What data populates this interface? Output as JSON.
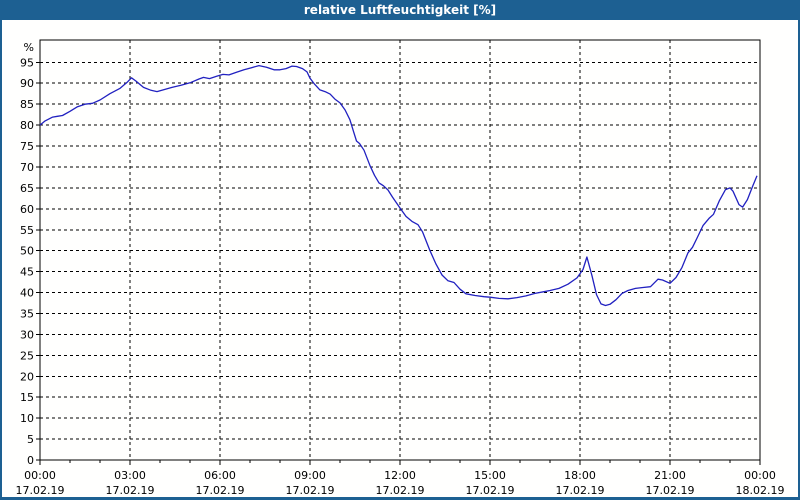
{
  "window": {
    "title": "relative Luftfeuchtigkeit [%]"
  },
  "colors": {
    "titlebar_bg": "#1d6092",
    "titlebar_text": "#ffffff",
    "window_border": "#1d6092",
    "plot_bg": "#fffffe",
    "grid": "#000000",
    "axis": "#000000",
    "label": "#000000",
    "line": "#2121c0"
  },
  "chart_data": {
    "type": "line",
    "title": "relative Luftfeuchtigkeit [%]",
    "ylabel": "%",
    "xlabel": "",
    "ylim": [
      0,
      100.4
    ],
    "xlim_hours": [
      0,
      24
    ],
    "grid": "dashed",
    "legend": "none",
    "y_tick_labels": [
      "0",
      "5",
      "10",
      "15",
      "20",
      "25",
      "30",
      "35",
      "40",
      "45",
      "50",
      "55",
      "60",
      "65",
      "70",
      "75",
      "80",
      "85",
      "90",
      "95"
    ],
    "y_tick_values": [
      0,
      5,
      10,
      15,
      20,
      25,
      30,
      35,
      40,
      45,
      50,
      55,
      60,
      65,
      70,
      75,
      80,
      85,
      90,
      95
    ],
    "x_ticks": [
      {
        "hour": 0,
        "time": "00:00",
        "date": "17.02.19"
      },
      {
        "hour": 3,
        "time": "03:00",
        "date": "17.02.19"
      },
      {
        "hour": 6,
        "time": "06:00",
        "date": "17.02.19"
      },
      {
        "hour": 9,
        "time": "09:00",
        "date": "17.02.19"
      },
      {
        "hour": 12,
        "time": "12:00",
        "date": "17.02.19"
      },
      {
        "hour": 15,
        "time": "15:00",
        "date": "17.02.19"
      },
      {
        "hour": 18,
        "time": "18:00",
        "date": "17.02.19"
      },
      {
        "hour": 21,
        "time": "21:00",
        "date": "17.02.19"
      },
      {
        "hour": 24,
        "time": "00:00",
        "date": "18.02.19"
      }
    ],
    "x_minor_tick_hours": [
      1,
      2,
      4,
      5,
      7,
      8,
      10,
      11,
      13,
      14,
      16,
      17,
      19,
      20,
      22,
      23
    ],
    "series": [
      {
        "name": "relative Luftfeuchtigkeit",
        "unit": "%",
        "points": [
          [
            0.0,
            80.0
          ],
          [
            0.17,
            81.0
          ],
          [
            0.42,
            81.9
          ],
          [
            0.58,
            82.1
          ],
          [
            0.75,
            82.3
          ],
          [
            1.0,
            83.3
          ],
          [
            1.25,
            84.4
          ],
          [
            1.5,
            85.0
          ],
          [
            1.75,
            85.2
          ],
          [
            2.0,
            86.0
          ],
          [
            2.33,
            87.5
          ],
          [
            2.67,
            88.8
          ],
          [
            2.9,
            90.2
          ],
          [
            3.05,
            91.3
          ],
          [
            3.2,
            90.5
          ],
          [
            3.45,
            89.0
          ],
          [
            3.7,
            88.3
          ],
          [
            3.9,
            88.0
          ],
          [
            4.15,
            88.5
          ],
          [
            4.4,
            89.0
          ],
          [
            4.7,
            89.5
          ],
          [
            5.0,
            90.1
          ],
          [
            5.3,
            91.0
          ],
          [
            5.45,
            91.4
          ],
          [
            5.65,
            91.1
          ],
          [
            5.9,
            91.7
          ],
          [
            6.1,
            92.1
          ],
          [
            6.3,
            92.0
          ],
          [
            6.55,
            92.6
          ],
          [
            6.8,
            93.2
          ],
          [
            7.05,
            93.7
          ],
          [
            7.3,
            94.2
          ],
          [
            7.55,
            93.8
          ],
          [
            7.8,
            93.2
          ],
          [
            8.0,
            93.2
          ],
          [
            8.2,
            93.5
          ],
          [
            8.4,
            94.1
          ],
          [
            8.55,
            94.0
          ],
          [
            8.75,
            93.5
          ],
          [
            8.9,
            92.7
          ],
          [
            9.0,
            91.2
          ],
          [
            9.15,
            89.8
          ],
          [
            9.33,
            88.4
          ],
          [
            9.5,
            88.0
          ],
          [
            9.67,
            87.4
          ],
          [
            9.83,
            86.2
          ],
          [
            10.0,
            85.3
          ],
          [
            10.17,
            83.6
          ],
          [
            10.33,
            81.3
          ],
          [
            10.45,
            78.5
          ],
          [
            10.55,
            76.2
          ],
          [
            10.65,
            75.6
          ],
          [
            10.8,
            74.0
          ],
          [
            11.0,
            70.3
          ],
          [
            11.15,
            68.0
          ],
          [
            11.3,
            66.2
          ],
          [
            11.45,
            65.5
          ],
          [
            11.6,
            64.5
          ],
          [
            11.75,
            62.8
          ],
          [
            12.0,
            60.2
          ],
          [
            12.2,
            58.2
          ],
          [
            12.4,
            57.0
          ],
          [
            12.6,
            56.2
          ],
          [
            12.75,
            54.5
          ],
          [
            13.0,
            50.0
          ],
          [
            13.2,
            46.8
          ],
          [
            13.4,
            44.2
          ],
          [
            13.6,
            42.8
          ],
          [
            13.8,
            42.4
          ],
          [
            14.0,
            40.8
          ],
          [
            14.2,
            39.7
          ],
          [
            14.5,
            39.3
          ],
          [
            14.8,
            39.0
          ],
          [
            15.0,
            38.9
          ],
          [
            15.3,
            38.6
          ],
          [
            15.6,
            38.5
          ],
          [
            15.9,
            38.8
          ],
          [
            16.2,
            39.2
          ],
          [
            16.5,
            39.8
          ],
          [
            16.8,
            40.2
          ],
          [
            17.0,
            40.5
          ],
          [
            17.3,
            41.0
          ],
          [
            17.6,
            42.0
          ],
          [
            17.9,
            43.5
          ],
          [
            18.1,
            45.5
          ],
          [
            18.23,
            48.5
          ],
          [
            18.4,
            44.0
          ],
          [
            18.55,
            39.5
          ],
          [
            18.7,
            37.3
          ],
          [
            18.85,
            36.9
          ],
          [
            19.0,
            37.2
          ],
          [
            19.2,
            38.3
          ],
          [
            19.4,
            39.8
          ],
          [
            19.6,
            40.5
          ],
          [
            19.85,
            41.0
          ],
          [
            20.1,
            41.2
          ],
          [
            20.35,
            41.4
          ],
          [
            20.6,
            43.2
          ],
          [
            20.75,
            43.0
          ],
          [
            21.0,
            42.2
          ],
          [
            21.2,
            43.6
          ],
          [
            21.4,
            46.0
          ],
          [
            21.6,
            49.5
          ],
          [
            21.75,
            50.8
          ],
          [
            21.9,
            53.0
          ],
          [
            22.1,
            56.0
          ],
          [
            22.3,
            57.7
          ],
          [
            22.45,
            58.7
          ],
          [
            22.65,
            62.0
          ],
          [
            22.85,
            64.6
          ],
          [
            23.0,
            65.0
          ],
          [
            23.1,
            64.2
          ],
          [
            23.3,
            61.0
          ],
          [
            23.42,
            60.4
          ],
          [
            23.58,
            62.2
          ],
          [
            23.75,
            65.3
          ],
          [
            23.9,
            67.9
          ]
        ]
      }
    ]
  }
}
